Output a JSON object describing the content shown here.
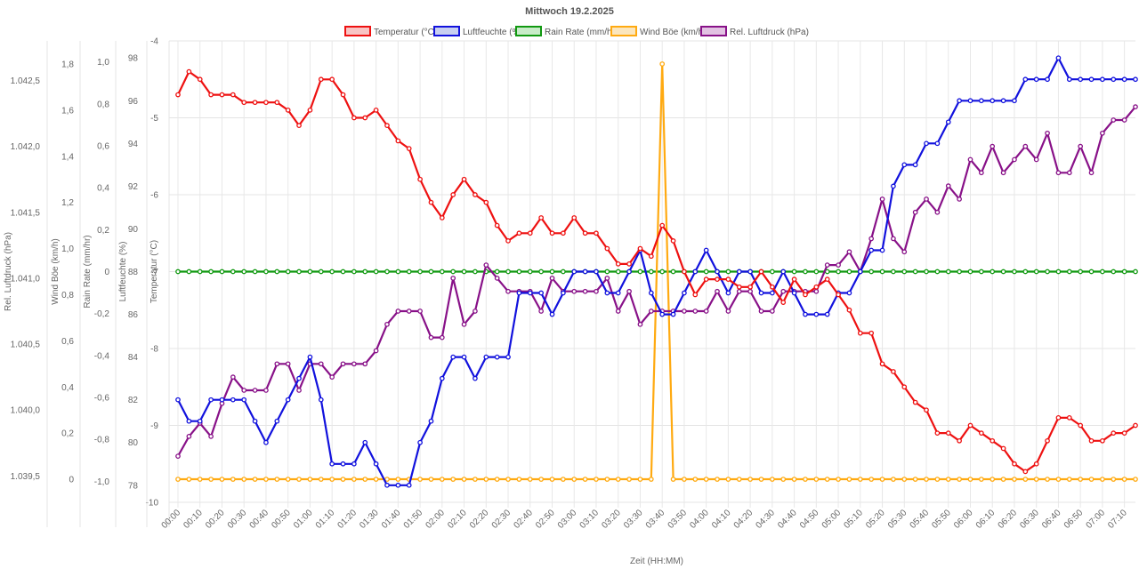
{
  "chart_data": {
    "type": "line",
    "title": "Mittwoch 19.2.2025",
    "xlabel": "Zeit (HH:MM)",
    "x": [
      "00:00",
      "00:05",
      "00:10",
      "00:15",
      "00:20",
      "00:25",
      "00:30",
      "00:35",
      "00:40",
      "00:45",
      "00:50",
      "00:55",
      "01:00",
      "01:05",
      "01:10",
      "01:15",
      "01:20",
      "01:25",
      "01:30",
      "01:35",
      "01:40",
      "01:45",
      "01:50",
      "01:55",
      "02:00",
      "02:05",
      "02:10",
      "02:15",
      "02:20",
      "02:25",
      "02:30",
      "02:35",
      "02:40",
      "02:45",
      "02:50",
      "02:55",
      "03:00",
      "03:05",
      "03:10",
      "03:15",
      "03:20",
      "03:25",
      "03:30",
      "03:35",
      "03:40",
      "03:45",
      "03:50",
      "03:55",
      "04:00",
      "04:05",
      "04:10",
      "04:15",
      "04:20",
      "04:25",
      "04:30",
      "04:35",
      "04:40",
      "04:45",
      "04:50",
      "04:55",
      "05:00",
      "05:05",
      "05:10",
      "05:15",
      "05:20",
      "05:25",
      "05:30",
      "05:35",
      "05:40",
      "05:45",
      "05:50",
      "05:55",
      "06:00",
      "06:05",
      "06:10",
      "06:15",
      "06:20",
      "06:25",
      "06:30",
      "06:35",
      "06:40",
      "06:45",
      "06:50",
      "06:55",
      "07:00",
      "07:05",
      "07:10",
      "07:15"
    ],
    "xticks": [
      "00:00",
      "00:10",
      "00:20",
      "00:30",
      "00:40",
      "00:50",
      "01:00",
      "01:10",
      "01:20",
      "01:30",
      "01:40",
      "01:50",
      "02:00",
      "02:10",
      "02:20",
      "02:30",
      "02:40",
      "02:50",
      "03:00",
      "03:10",
      "03:20",
      "03:30",
      "03:40",
      "03:50",
      "04:00",
      "04:10",
      "04:20",
      "04:30",
      "04:40",
      "04:50",
      "05:00",
      "05:10",
      "05:20",
      "05:30",
      "05:40",
      "05:50",
      "06:00",
      "06:10",
      "06:20",
      "06:30",
      "06:40",
      "06:50",
      "07:00",
      "07:10"
    ],
    "grid": true,
    "legend_position": "top",
    "axes": [
      {
        "id": "temp",
        "label": "Temperatur (°C)",
        "min": -10,
        "max": -4,
        "ticks": [
          "-4",
          "-5",
          "-6",
          "-7",
          "-8",
          "-9",
          "-10"
        ],
        "tick_values": [
          -4,
          -5,
          -6,
          -7,
          -8,
          -9,
          -10
        ]
      },
      {
        "id": "hum",
        "label": "Luftfeuchte (%)",
        "min": 77.2,
        "max": 98.8,
        "ticks": [
          "98",
          "96",
          "94",
          "92",
          "90",
          "88",
          "86",
          "84",
          "82",
          "80",
          "78"
        ],
        "tick_values": [
          98,
          96,
          94,
          92,
          90,
          88,
          86,
          84,
          82,
          80,
          78
        ]
      },
      {
        "id": "rain",
        "label": "Rain Rate (mm/hr)",
        "min": -1.1,
        "max": 1.1,
        "ticks": [
          "1,0",
          "0,8",
          "0,6",
          "0,4",
          "0,2",
          "0",
          "-0,2",
          "-0,4",
          "-0,6",
          "-0,8",
          "-1,0"
        ],
        "tick_values": [
          1,
          0.8,
          0.6,
          0.4,
          0.2,
          0,
          -0.2,
          -0.4,
          -0.6,
          -0.8,
          -1
        ]
      },
      {
        "id": "wind",
        "label": "Wind Böe (km/h)",
        "min": -0.1,
        "max": 1.9,
        "ticks": [
          "1,8",
          "1,6",
          "1,4",
          "1,2",
          "1,0",
          "0,8",
          "0,6",
          "0,4",
          "0,2",
          "0"
        ],
        "tick_values": [
          1.8,
          1.6,
          1.4,
          1.2,
          1,
          0.8,
          0.6,
          0.4,
          0.2,
          0
        ]
      },
      {
        "id": "press",
        "label": "Rel. Luftdruck (hPa)",
        "min": 1039.3,
        "max": 1042.8,
        "ticks": [
          "1.042,5",
          "1.042,0",
          "1.041,5",
          "1.041,0",
          "1.040,5",
          "1.040,0",
          "1.039,5"
        ],
        "tick_values": [
          1042.5,
          1042,
          1041.5,
          1041,
          1040.5,
          1040,
          1039.5
        ]
      }
    ],
    "series": [
      {
        "name": "Temperatur (°C)",
        "axis": "temp",
        "color": "#ee1111",
        "fill": "#f8c4c4",
        "values": [
          -4.7,
          -4.4,
          -4.5,
          -4.7,
          -4.7,
          -4.7,
          -4.8,
          -4.8,
          -4.8,
          -4.8,
          -4.9,
          -5.1,
          -4.9,
          -4.5,
          -4.5,
          -4.7,
          -5.0,
          -5.0,
          -4.9,
          -5.1,
          -5.3,
          -5.4,
          -5.8,
          -6.1,
          -6.3,
          -6.0,
          -5.8,
          -6.0,
          -6.1,
          -6.4,
          -6.6,
          -6.5,
          -6.5,
          -6.3,
          -6.5,
          -6.5,
          -6.3,
          -6.5,
          -6.5,
          -6.7,
          -6.9,
          -6.9,
          -6.7,
          -6.8,
          -6.4,
          -6.6,
          -7.0,
          -7.3,
          -7.1,
          -7.1,
          -7.1,
          -7.2,
          -7.2,
          -7.0,
          -7.2,
          -7.4,
          -7.1,
          -7.3,
          -7.2,
          -7.1,
          -7.3,
          -7.5,
          -7.8,
          -7.8,
          -8.2,
          -8.3,
          -8.5,
          -8.7,
          -8.8,
          -9.1,
          -9.1,
          -9.2,
          -9.0,
          -9.1,
          -9.2,
          -9.3,
          -9.5,
          -9.6,
          -9.5,
          -9.2,
          -8.9,
          -8.9,
          -9.0,
          -9.2,
          -9.2,
          -9.1,
          -9.1,
          -9.0
        ]
      },
      {
        "name": "Luftfeuchte (%)",
        "axis": "hum",
        "color": "#1111dd",
        "fill": "#c8cff0",
        "values": [
          82,
          81,
          81,
          82,
          82,
          82,
          82,
          81,
          80,
          81,
          82,
          83,
          84,
          82,
          79,
          79,
          79,
          80,
          79,
          78,
          78,
          78,
          80,
          81,
          83,
          84,
          84,
          83,
          84,
          84,
          84,
          87,
          87,
          87,
          86,
          87,
          88,
          88,
          88,
          87,
          87,
          88,
          89,
          87,
          86,
          86,
          87,
          88,
          89,
          88,
          87,
          88,
          88,
          87,
          87,
          88,
          87,
          86,
          86,
          86,
          87,
          87,
          88,
          89,
          89,
          92,
          93,
          93,
          94,
          94,
          95,
          96,
          96,
          96,
          96,
          96,
          96,
          97,
          97,
          97,
          98,
          97,
          97,
          97,
          97,
          97,
          97,
          97
        ]
      },
      {
        "name": "Rain Rate (mm/hr)",
        "axis": "rain",
        "color": "#119911",
        "fill": "#c8ecc8",
        "values": [
          0,
          0,
          0,
          0,
          0,
          0,
          0,
          0,
          0,
          0,
          0,
          0,
          0,
          0,
          0,
          0,
          0,
          0,
          0,
          0,
          0,
          0,
          0,
          0,
          0,
          0,
          0,
          0,
          0,
          0,
          0,
          0,
          0,
          0,
          0,
          0,
          0,
          0,
          0,
          0,
          0,
          0,
          0,
          0,
          0,
          0,
          0,
          0,
          0,
          0,
          0,
          0,
          0,
          0,
          0,
          0,
          0,
          0,
          0,
          0,
          0,
          0,
          0,
          0,
          0,
          0,
          0,
          0,
          0,
          0,
          0,
          0,
          0,
          0,
          0,
          0,
          0,
          0,
          0,
          0,
          0,
          0,
          0,
          0,
          0,
          0,
          0,
          0
        ]
      },
      {
        "name": "Wind Böe (km/h)",
        "axis": "wind",
        "color": "#ffaa11",
        "fill": "#fbe6bd",
        "values": [
          0,
          0,
          0,
          0,
          0,
          0,
          0,
          0,
          0,
          0,
          0,
          0,
          0,
          0,
          0,
          0,
          0,
          0,
          0,
          0,
          0,
          0,
          0,
          0,
          0,
          0,
          0,
          0,
          0,
          0,
          0,
          0,
          0,
          0,
          0,
          0,
          0,
          0,
          0,
          0,
          0,
          0,
          0,
          0,
          1.8,
          0,
          0,
          0,
          0,
          0,
          0,
          0,
          0,
          0,
          0,
          0,
          0,
          0,
          0,
          0,
          0,
          0,
          0,
          0,
          0,
          0,
          0,
          0,
          0,
          0,
          0,
          0,
          0,
          0,
          0,
          0,
          0,
          0,
          0,
          0,
          0,
          0,
          0,
          0,
          0,
          0,
          0,
          0
        ]
      },
      {
        "name": "Rel. Luftdruck (hPa)",
        "axis": "press",
        "color": "#881188",
        "fill": "#e2c2e2",
        "values": [
          1039.65,
          1039.8,
          1039.9,
          1039.8,
          1040.05,
          1040.25,
          1040.15,
          1040.15,
          1040.15,
          1040.35,
          1040.35,
          1040.15,
          1040.35,
          1040.35,
          1040.25,
          1040.35,
          1040.35,
          1040.35,
          1040.45,
          1040.65,
          1040.75,
          1040.75,
          1040.75,
          1040.55,
          1040.55,
          1041.0,
          1040.65,
          1040.75,
          1041.1,
          1041.0,
          1040.9,
          1040.9,
          1040.9,
          1040.75,
          1041.0,
          1040.9,
          1040.9,
          1040.9,
          1040.9,
          1041.0,
          1040.75,
          1040.9,
          1040.65,
          1040.75,
          1040.75,
          1040.75,
          1040.75,
          1040.75,
          1040.75,
          1040.9,
          1040.75,
          1040.9,
          1040.9,
          1040.75,
          1040.75,
          1040.9,
          1040.9,
          1040.9,
          1040.9,
          1041.1,
          1041.1,
          1041.2,
          1041.05,
          1041.3,
          1041.6,
          1041.3,
          1041.2,
          1041.5,
          1041.6,
          1041.5,
          1041.7,
          1041.6,
          1041.9,
          1041.8,
          1042.0,
          1041.8,
          1041.9,
          1042.0,
          1041.9,
          1042.1,
          1041.8,
          1041.8,
          1042.0,
          1041.8,
          1042.1,
          1042.2,
          1042.2,
          1042.3
        ]
      }
    ]
  }
}
